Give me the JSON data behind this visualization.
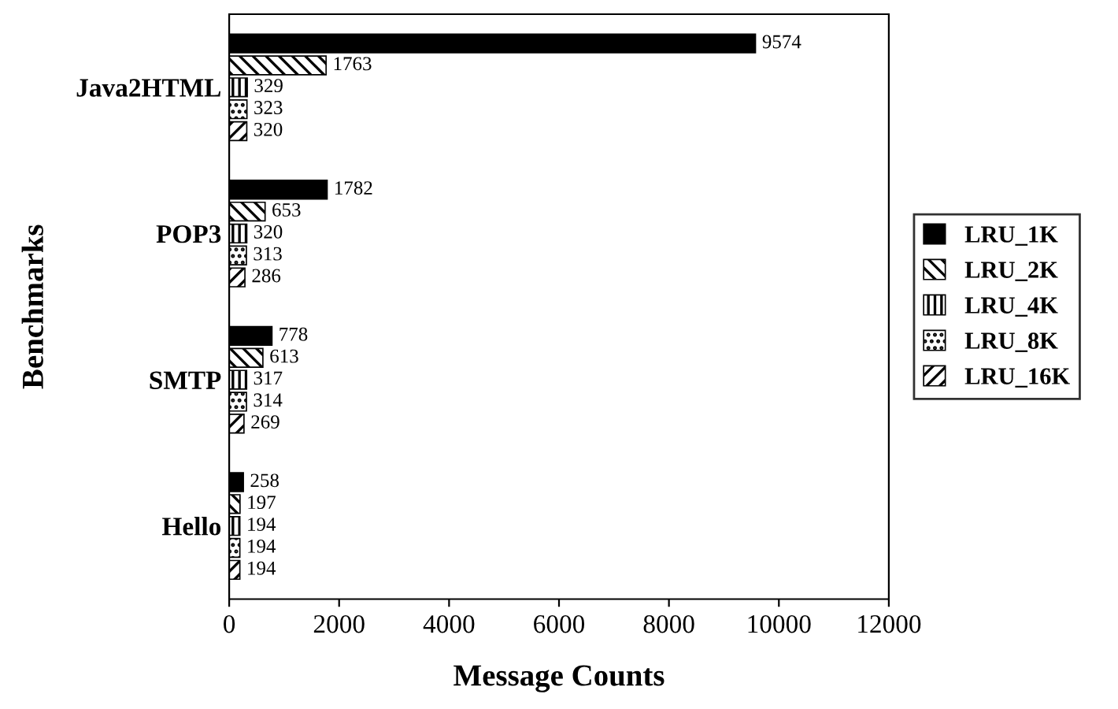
{
  "chart_data": {
    "type": "bar",
    "orientation": "horizontal",
    "xlabel": "Message Counts",
    "ylabel": "Benchmarks",
    "categories": [
      "Java2HTML",
      "POP3",
      "SMTP",
      "Hello"
    ],
    "series": [
      {
        "name": "LRU_1K",
        "color": "#000000",
        "values": [
          9574,
          1782,
          778,
          258
        ]
      },
      {
        "name": "LRU_2K",
        "color": "#000000",
        "values": [
          1763,
          653,
          613,
          197
        ]
      },
      {
        "name": "LRU_4K",
        "color": "#000000",
        "values": [
          329,
          320,
          317,
          194
        ]
      },
      {
        "name": "LRU_8K",
        "color": "#000000",
        "values": [
          323,
          313,
          314,
          194
        ]
      },
      {
        "name": "LRU_16K",
        "color": "#000000",
        "values": [
          320,
          286,
          269,
          194
        ]
      }
    ],
    "xlim": [
      0,
      12000
    ],
    "xticks": [
      0,
      2000,
      4000,
      6000,
      8000,
      10000,
      12000
    ],
    "data_labels": true,
    "legend": "right",
    "grid": false
  }
}
